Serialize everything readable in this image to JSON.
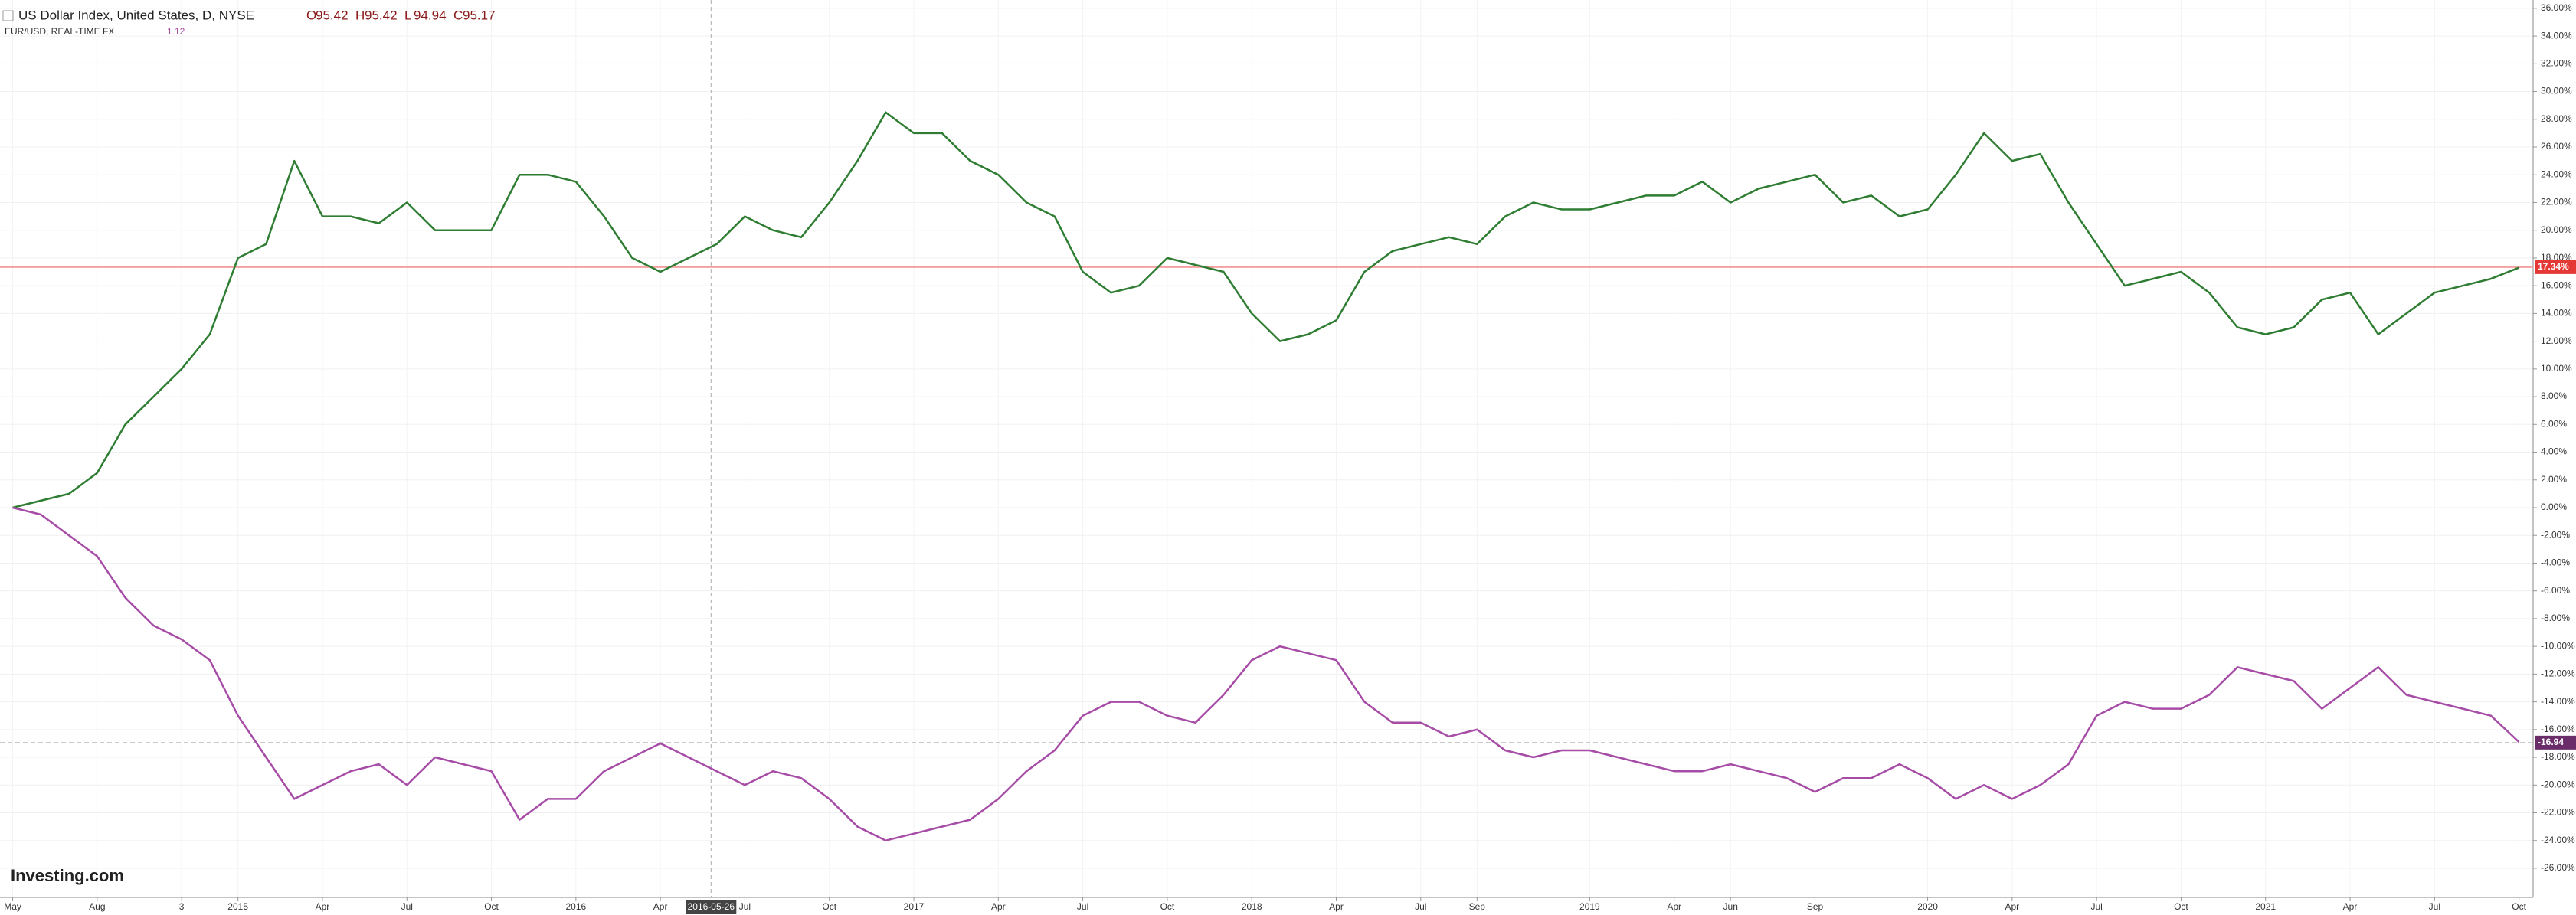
{
  "chart_data": {
    "type": "line",
    "title": "US Dollar Index, United States, D, NYSE",
    "ohlc": [
      {
        "key": "O",
        "value": "95.42"
      },
      {
        "key": "H",
        "value": "95.42"
      },
      {
        "key": "L",
        "value": "94.94"
      },
      {
        "key": "C",
        "value": "95.17"
      }
    ],
    "compare_label": "EUR/USD, REAL-TIME FX",
    "compare_value": "1.12",
    "watermark": "Investing.com",
    "series": [
      {
        "name": "US Dollar Index",
        "color": "#2e7d32",
        "last_value": 17.34,
        "last_label": "17.34%",
        "last_color": "#e53935",
        "values": [
          0,
          0.5,
          1,
          2.5,
          6,
          8,
          10,
          12.5,
          18,
          19,
          25,
          21,
          21,
          20.5,
          22,
          20,
          20,
          20,
          24,
          24,
          23.5,
          21,
          18,
          17,
          18,
          19,
          21,
          20,
          19.5,
          22,
          25,
          28.5,
          27,
          27,
          25,
          24,
          22,
          21,
          17,
          15.5,
          16,
          18,
          17.5,
          17,
          14,
          12,
          12.5,
          13.5,
          17,
          18.5,
          19,
          19.5,
          19,
          21,
          22,
          21.5,
          21.5,
          22,
          22.5,
          22.5,
          23.5,
          22,
          23,
          23.5,
          24,
          22,
          22.5,
          21,
          21.5,
          24,
          27,
          25,
          25.5,
          22,
          19,
          16,
          16.5,
          17,
          15.5,
          13,
          12.5,
          13,
          15,
          15.5,
          12.5,
          14,
          15.5,
          16,
          16.5,
          17.3
        ]
      },
      {
        "name": "EUR/USD",
        "color": "#a64ca6",
        "last_value": -16.94,
        "last_label": "-16.94",
        "last_color": "#6a2d6a",
        "values": [
          0,
          -0.5,
          -2,
          -3.5,
          -6.5,
          -8.5,
          -9.5,
          -11,
          -15,
          -18,
          -21,
          -20,
          -19,
          -18.5,
          -20,
          -18,
          -18.5,
          -19,
          -22.5,
          -21,
          -21,
          -19,
          -18,
          -17,
          -18,
          -19,
          -20,
          -19,
          -19.5,
          -21,
          -23,
          -24,
          -23.5,
          -23,
          -22.5,
          -21,
          -19,
          -17.5,
          -15,
          -14,
          -14,
          -15,
          -15.5,
          -13.5,
          -11,
          -10,
          -10.5,
          -11,
          -14,
          -15.5,
          -15.5,
          -16.5,
          -16,
          -17.5,
          -18,
          -17.5,
          -17.5,
          -18,
          -18.5,
          -19,
          -19,
          -18.5,
          -19,
          -19.5,
          -20.5,
          -19.5,
          -19.5,
          -18.5,
          -19.5,
          -21,
          -20,
          -21,
          -20,
          -18.5,
          -15,
          -14,
          -14.5,
          -14.5,
          -13.5,
          -11.5,
          -12,
          -12.5,
          -14.5,
          -13,
          -11.5,
          -13.5,
          -14,
          -14.5,
          -15,
          -16.9
        ]
      }
    ],
    "xlim": [
      -0.45,
      89.5
    ],
    "xticks": [
      {
        "value": 0,
        "label": "May"
      },
      {
        "value": 3,
        "label": "Aug"
      },
      {
        "value": 6,
        "label": "3"
      },
      {
        "value": 8,
        "label": "2015"
      },
      {
        "value": 11,
        "label": "Apr"
      },
      {
        "value": 14,
        "label": "Jul"
      },
      {
        "value": 17,
        "label": "Oct"
      },
      {
        "value": 20,
        "label": "2016"
      },
      {
        "value": 23,
        "label": "Apr"
      },
      {
        "value": 26,
        "label": "Jul"
      },
      {
        "value": 29,
        "label": "Oct"
      },
      {
        "value": 32,
        "label": "2017"
      },
      {
        "value": 35,
        "label": "Apr"
      },
      {
        "value": 38,
        "label": "Jul"
      },
      {
        "value": 41,
        "label": "Oct"
      },
      {
        "value": 44,
        "label": "2018"
      },
      {
        "value": 47,
        "label": "Apr"
      },
      {
        "value": 50,
        "label": "Jul"
      },
      {
        "value": 52,
        "label": "Sep"
      },
      {
        "value": 56,
        "label": "2019"
      },
      {
        "value": 59,
        "label": "Apr"
      },
      {
        "value": 61,
        "label": "Jun"
      },
      {
        "value": 64,
        "label": "Sep"
      },
      {
        "value": 68,
        "label": "2020"
      },
      {
        "value": 71,
        "label": "Apr"
      },
      {
        "value": 74,
        "label": "Jul"
      },
      {
        "value": 77,
        "label": "Oct"
      },
      {
        "value": 80,
        "label": "2021"
      },
      {
        "value": 83,
        "label": "Apr"
      },
      {
        "value": 86,
        "label": "Jul"
      },
      {
        "value": 89,
        "label": "Oct"
      }
    ],
    "crosshair": {
      "x": 24.8,
      "label": "2016-05-26"
    },
    "ylim": [
      -28.1,
      36.6
    ],
    "yticks": [
      {
        "value": 36,
        "label": "36.00%"
      },
      {
        "value": 34,
        "label": "34.00%"
      },
      {
        "value": 32,
        "label": "32.00%"
      },
      {
        "value": 30,
        "label": "30.00%"
      },
      {
        "value": 28,
        "label": "28.00%"
      },
      {
        "value": 26,
        "label": "26.00%"
      },
      {
        "value": 24,
        "label": "24.00%"
      },
      {
        "value": 22,
        "label": "22.00%"
      },
      {
        "value": 20,
        "label": "20.00%"
      },
      {
        "value": 18,
        "label": "18.00%"
      },
      {
        "value": 16,
        "label": "16.00%"
      },
      {
        "value": 14,
        "label": "14.00%"
      },
      {
        "value": 12,
        "label": "12.00%"
      },
      {
        "value": 10,
        "label": "10.00%"
      },
      {
        "value": 8,
        "label": "8.00%"
      },
      {
        "value": 6,
        "label": "6.00%"
      },
      {
        "value": 4,
        "label": "4.00%"
      },
      {
        "value": 2,
        "label": "2.00%"
      },
      {
        "value": 0,
        "label": "0.00%"
      },
      {
        "value": -2,
        "label": "-2.00%"
      },
      {
        "value": -4,
        "label": "-4.00%"
      },
      {
        "value": -6,
        "label": "-6.00%"
      },
      {
        "value": -8,
        "label": "-8.00%"
      },
      {
        "value": -10,
        "label": "-10.00%"
      },
      {
        "value": -12,
        "label": "-12.00%"
      },
      {
        "value": -14,
        "label": "-14.00%"
      },
      {
        "value": -16,
        "label": "-16.00%"
      },
      {
        "value": -18,
        "label": "-18.00%"
      },
      {
        "value": -20,
        "label": "-20.00%"
      },
      {
        "value": -22,
        "label": "-22.00%"
      },
      {
        "value": -24,
        "label": "-24.00%"
      },
      {
        "value": -26,
        "label": "-26.00%"
      }
    ],
    "grid": true
  }
}
